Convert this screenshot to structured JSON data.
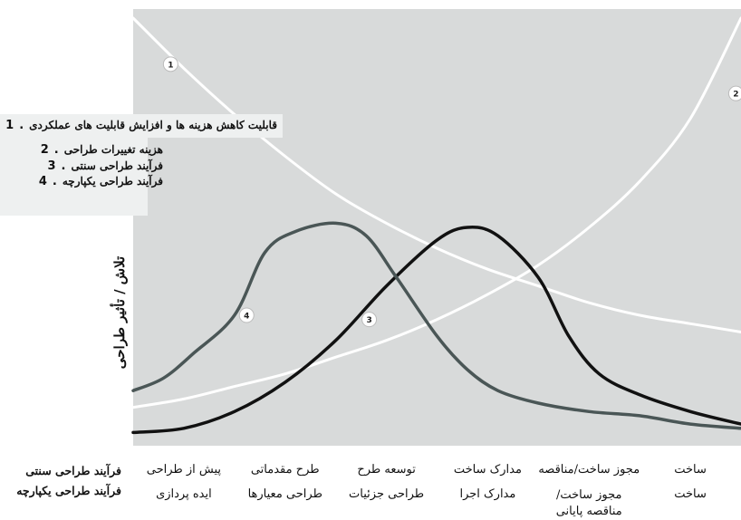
{
  "chart_data": {
    "type": "line",
    "ylabel": "تلاش / تأثیر طراحی",
    "xlabel": "",
    "legend": [
      {
        "id": "1",
        "label": "قابلیت کاهش هزینه ها و افزایش قابلیت های عملکردی"
      },
      {
        "id": "2",
        "label": "هزینه تغییرات طراحی"
      },
      {
        "id": "3",
        "label": "فرآیند طراحی سنتی"
      },
      {
        "id": "4",
        "label": "فرآیند طراحی یکپارچه"
      }
    ],
    "legend_placement": "top-left",
    "row_labels": {
      "traditional": "فرآیند طراحی سنتی",
      "integrated": "فرآیند طراحی یکپارچه"
    },
    "stages": [
      {
        "traditional": "پیش از طراحی",
        "integrated": "ایده پردازی"
      },
      {
        "traditional": "طرح مقدماتی",
        "integrated": "طراحی معیارها"
      },
      {
        "traditional": "توسعه طرح",
        "integrated": "طراحی جزئیات"
      },
      {
        "traditional": "مدارک ساخت",
        "integrated": "مدارک اجرا"
      },
      {
        "traditional": "مجوز ساخت/مناقصه",
        "integrated": "مجوز ساخت/ مناقصه پایانی"
      },
      {
        "traditional": "ساخت",
        "integrated": "ساخت"
      }
    ],
    "x_range": [
      0,
      6
    ],
    "y_range": [
      0,
      100
    ],
    "series": [
      {
        "id": "1",
        "color": "#ffffff",
        "width": 3,
        "x": [
          0,
          0.5,
          1,
          1.5,
          2,
          2.5,
          3,
          3.5,
          4,
          4.5,
          5,
          5.5,
          6
        ],
        "y": [
          100,
          88,
          77,
          67,
          58,
          51,
          45,
          40,
          36,
          32,
          29,
          27,
          25
        ]
      },
      {
        "id": "2",
        "color": "#ffffff",
        "width": 3,
        "x": [
          0,
          0.5,
          1,
          1.5,
          2,
          2.5,
          3,
          3.5,
          4,
          4.5,
          5,
          5.5,
          6
        ],
        "y": [
          7,
          9,
          12,
          15,
          19,
          23,
          28,
          34,
          41,
          50,
          61,
          76,
          100
        ]
      },
      {
        "id": "3",
        "color": "#111111",
        "width": 3.5,
        "x": [
          0,
          0.5,
          1,
          1.5,
          2,
          2.5,
          3,
          3.3,
          3.6,
          4,
          4.3,
          4.6,
          5,
          5.5,
          6
        ],
        "y": [
          1,
          2,
          6,
          13,
          23,
          36,
          47,
          50,
          48,
          38,
          24,
          15,
          10,
          6,
          3
        ]
      },
      {
        "id": "4",
        "color": "#4a5656",
        "width": 3.5,
        "x": [
          0,
          0.3,
          0.6,
          1,
          1.3,
          1.6,
          2,
          2.3,
          2.6,
          3,
          3.3,
          3.6,
          4,
          4.5,
          5,
          5.5,
          6
        ],
        "y": [
          11,
          14,
          20,
          29,
          44,
          49,
          51,
          48,
          38,
          24,
          16,
          11,
          8,
          6,
          5,
          3,
          2
        ]
      }
    ],
    "markers": [
      {
        "series": "1",
        "label": "1",
        "x": 0.37,
        "y": 89
      },
      {
        "series": "2",
        "label": "2",
        "x": 5.95,
        "y": 82
      },
      {
        "series": "3",
        "label": "3",
        "x": 2.33,
        "y": 28
      },
      {
        "series": "4",
        "label": "4",
        "x": 1.12,
        "y": 29
      }
    ]
  }
}
